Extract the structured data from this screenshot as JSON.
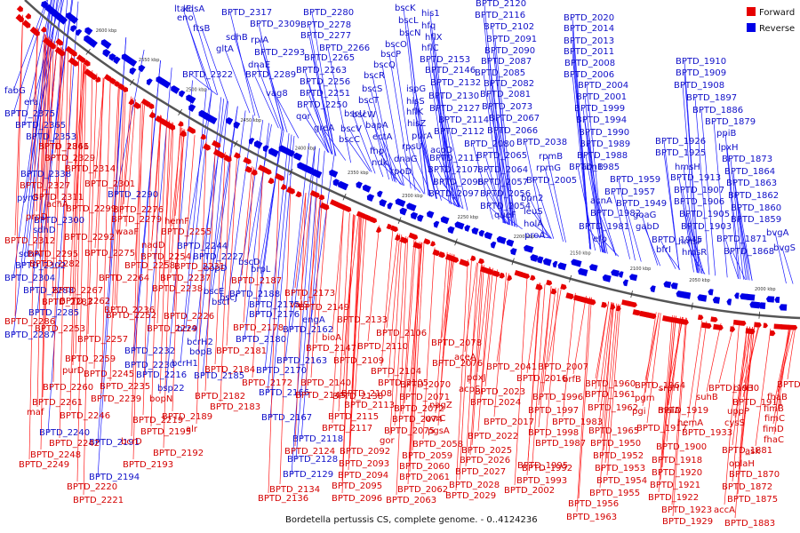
{
  "caption": "Bordetella pertussis CS, complete genome. - 0..4124236",
  "legend": [
    {
      "label": "Forward",
      "color": "#e60000"
    },
    {
      "label": "Reverse",
      "color": "#0000e6"
    }
  ],
  "backbone_ticks": [
    "2600 kbp",
    "2550 kbp",
    "2500 kbp",
    "2450 kbp",
    "2400 kbp",
    "2350 kbp",
    "2300 kbp",
    "2250 kbp",
    "2200 kbp",
    "2150 kbp",
    "2100 kbp",
    "2050 kbp",
    "2000 kbp"
  ],
  "colors": {
    "forward_label": "#d40000",
    "reverse_label": "#1010c8",
    "backbone": "#555555"
  },
  "labels": {
    "reverse": [
      "ltaE",
      "kdsA",
      "eno",
      "ftsB",
      "BPTD_2317",
      "BPTD_2280",
      "BPTD_2309",
      "BPTD_2278",
      "BPTD_2277",
      "sdhB",
      "gltA",
      "rpiA",
      "BPTD_2266",
      "BPTD_2293",
      "BPTD_2265",
      "dnaE",
      "BPTD_2263",
      "BPTD_2322",
      "BPTD_2289",
      "BPTD_2256",
      "vag8",
      "BPTD_2251",
      "BPTD_2250",
      "qor",
      "bscK",
      "bscL",
      "bscN",
      "bscO",
      "bscP",
      "bscQ",
      "bscR",
      "bscS",
      "bscT",
      "bscU",
      "bscW",
      "greA",
      "bscV",
      "bscC",
      "bapA",
      "ectA",
      "fhp",
      "ndk",
      "his1",
      "hfq",
      "hflX",
      "hflC",
      "ispG",
      "hisS",
      "hflK",
      "hisZ",
      "purA",
      "rpsU",
      "dnaG",
      "rpoD",
      "BPTD_2153",
      "BPTD_2146",
      "BPTD_2132",
      "BPTD_2130",
      "BPTD_2127",
      "BPTD_2114",
      "BPTD_2112",
      "acoD",
      "BPTD_2111",
      "BPTD_2107",
      "BPTD_2098",
      "BPTD_2097",
      "BPTD_2120",
      "BPTD_2116",
      "BPTD_2102",
      "BPTD_2091",
      "BPTD_2090",
      "BPTD_2087",
      "BPTD_2085",
      "BPTD_2082",
      "BPTD_2081",
      "BPTD_2073",
      "BPTD_2067",
      "BPTD_2066",
      "BPTD_2080",
      "BPTD_2065",
      "BPTD_2064",
      "BPTD_2057",
      "BPTD_2056",
      "BPTD_2054",
      "queF",
      "BPTD_2038",
      "rpmB",
      "rpmG",
      "BPTD_2005",
      "bpn2",
      "leuS",
      "holA",
      "proA",
      "BPTD_2020",
      "BPTD_2014",
      "BPTD_2013",
      "BPTD_2011",
      "BPTD_2008",
      "BPTD_2006",
      "BPTD_2004",
      "BPTD_2001",
      "BPTD_1999",
      "BPTD_1994",
      "BPTD_1990",
      "BPTD_1989",
      "BPTD_1988",
      "BPTD_1985",
      "acnB",
      "acnA",
      "BPTD_1982",
      "BPTD_1981",
      "efp",
      "BPTD_1959",
      "BPTD_1957",
      "BPTD_1949",
      "goaG",
      "gabD",
      "BPTD_1945",
      "bfrI",
      "BPTD_1926",
      "hmsH",
      "BPTD_1925",
      "BPTD_1913",
      "BPTD_1907",
      "BPTD_1906",
      "BPTD_1905",
      "BPTD_1903",
      "hmsF",
      "hmsR",
      "BPTD_1910",
      "BPTD_1909",
      "BPTD_1908",
      "BPTD_1897",
      "BPTD_1886",
      "BPTD_1879",
      "ppiB",
      "lpxH",
      "BPTD_1873",
      "BPTD_1864",
      "BPTD_1863",
      "BPTD_1862",
      "BPTD_1860",
      "BPTD_1859",
      "BPTD_1871",
      "BPTD_1868",
      "bvgA",
      "bvgS",
      "fabG",
      "era",
      "BPTD_2375",
      "BPTD_2365",
      "BPTD_2353",
      "BPTD_2338",
      "pyrG",
      "sdhD",
      "sdhA",
      "BPTD_2302",
      "BPTD_2304",
      "BPTD_2288",
      "BPTD_2285",
      "BPTD_2287",
      "BPTD_2300",
      "BPTD_2290",
      "BPTD_2244",
      "BPTD_2227",
      "bscD",
      "bopD",
      "brpL",
      "bscE",
      "bscI",
      "bscJ",
      "BPTD_2188",
      "BPTD_2175",
      "BPTD_2176",
      "BPTD_2180",
      "BPTD_2162",
      "BPTD_2163",
      "BPTD_2170",
      "BPTD_2166",
      "BPTD_2167",
      "bcr4",
      "bcrH2",
      "bopB",
      "bcrH1",
      "bsp22",
      "BPTD_2232",
      "BPTD_2230",
      "BPTD_2216",
      "BPTD_2185",
      "BPTD_2240",
      "BPTD_2191",
      "BPTD_2194",
      "BPTD_2118",
      "BPTD_2128",
      "BPTD_2129",
      "engA"
    ],
    "forward": [
      "BPTD_2341",
      "BPTD_2329",
      "BPTD_2314",
      "BPTD_2327",
      "BPTD_2301",
      "BPTD_2311",
      "acnA",
      "BPTD_2299",
      "BPTD_2276",
      "prpD",
      "BPTD_2279",
      "hemF",
      "BPTD_2312",
      "BPTD_2292",
      "waaF",
      "BPTD_2255",
      "BPTD_2295",
      "BPTD_2275",
      "nadD",
      "BPTD_2282",
      "BPTD_2254",
      "BPTD_2258",
      "BPTD_2231",
      "BPTD_2264",
      "BPTD_2237",
      "BPTD_2187",
      "BPTD_2267",
      "BPTD_2238",
      "BPTD_2262",
      "BPTD_2283",
      "BPTD_2236",
      "BPTD_2226",
      "BPTD_2252",
      "BPTD_2286",
      "BPTD_2253",
      "BPTD_2229",
      "BPTD_2257",
      "BPTD_2173",
      "valS",
      "BPTD_2149",
      "BPTD_2133",
      "bioA",
      "BPTD_2106",
      "BPTD_2147",
      "BPTD_2110",
      "BPTD_2178",
      "BPTD_2181",
      "BPTD_2109",
      "BPTD_2104",
      "BPTD_2184",
      "BPTD_2172",
      "BPTD_2140",
      "BPTD_2138",
      "BPTD_2105",
      "BPTD_2145",
      "BPTD_2108",
      "BPTD_2182",
      "BPTD_2183",
      "BPTD_2113",
      "BPTD_2115",
      "BPTD_2117",
      "BPTD_2259",
      "purD",
      "BPTD_2245",
      "BPTD_2260",
      "BPTD_2235",
      "BPTD_2239",
      "bopN",
      "BPTD_2261",
      "maf",
      "BPTD_2246",
      "BPTD_2219",
      "BPTD_2189",
      "BPTD_2195",
      "alr",
      "bcrD",
      "BPTD_2242",
      "BPTD_2248",
      "BPTD_2249",
      "BPTD_2192",
      "BPTD_2193",
      "BPTD_2220",
      "BPTD_2221",
      "BPTD_2124",
      "BPTD_2092",
      "BPTD_2093",
      "BPTD_2094",
      "BPTD_2095",
      "BPTD_2096",
      "BPTD_2134",
      "BPTD_2136",
      "BPTD_2078",
      "aceA",
      "BPTD_2076",
      "pdxJ",
      "BPTD_2070",
      "BPTD_2071",
      "BPTD_2072",
      "BPTD_2074",
      "BPTD_2075",
      "gor",
      "BPTD_2058",
      "BPTD_2059",
      "BPTD_2060",
      "BPTD_2061",
      "BPTD_2062",
      "BPTD_2063",
      "pgsA",
      "uvrC",
      "nagZ",
      "acpS",
      "BPTD_2023",
      "BPTD_2024",
      "BPTD_2041",
      "BPTD_2016",
      "BPTD_2007",
      "brfB",
      "BPTD_2017",
      "BPTD_2022",
      "BPTD_2025",
      "BPTD_2026",
      "BPTD_2027",
      "BPTD_2028",
      "BPTD_2029",
      "BPTD_2002",
      "BPTD_1996",
      "BPTD_1997",
      "BPTD_1983",
      "BPTD_1998",
      "BPTD_1987",
      "BPTD_1992",
      "BPTD_1993",
      "BPTD_1995",
      "BPTD_1960",
      "BPTD_1961",
      "BPTD_1962",
      "BPTD_1965",
      "BPTD_1950",
      "BPTD_1952",
      "BPTD_1953",
      "BPTD_1954",
      "BPTD_1955",
      "BPTD_1956",
      "BPTD_1963",
      "BPTD_1964",
      "pgm",
      "pgi",
      "srpH",
      "BPTD_1919",
      "maiA",
      "hemA",
      "BPTD_1917",
      "BPTD_1933",
      "BPTD_1900",
      "BPTD_1918",
      "BPTD_1920",
      "BPTD_1921",
      "BPTD_1922",
      "BPTD_1923",
      "BPTD_1929",
      "BPTD_1930",
      "bioH",
      "suhB",
      "BPTD_1911",
      "uppP",
      "cysS",
      "BPTD_1881",
      "ask",
      "oplaH",
      "BPTD_1870",
      "BPTD_1872",
      "BPTD_1875",
      "accA",
      "BPTD_1883",
      "BPTD_1884",
      "fhaB",
      "fimB",
      "fimC",
      "fimD",
      "fhaC",
      "BPTD_1866"
    ]
  }
}
